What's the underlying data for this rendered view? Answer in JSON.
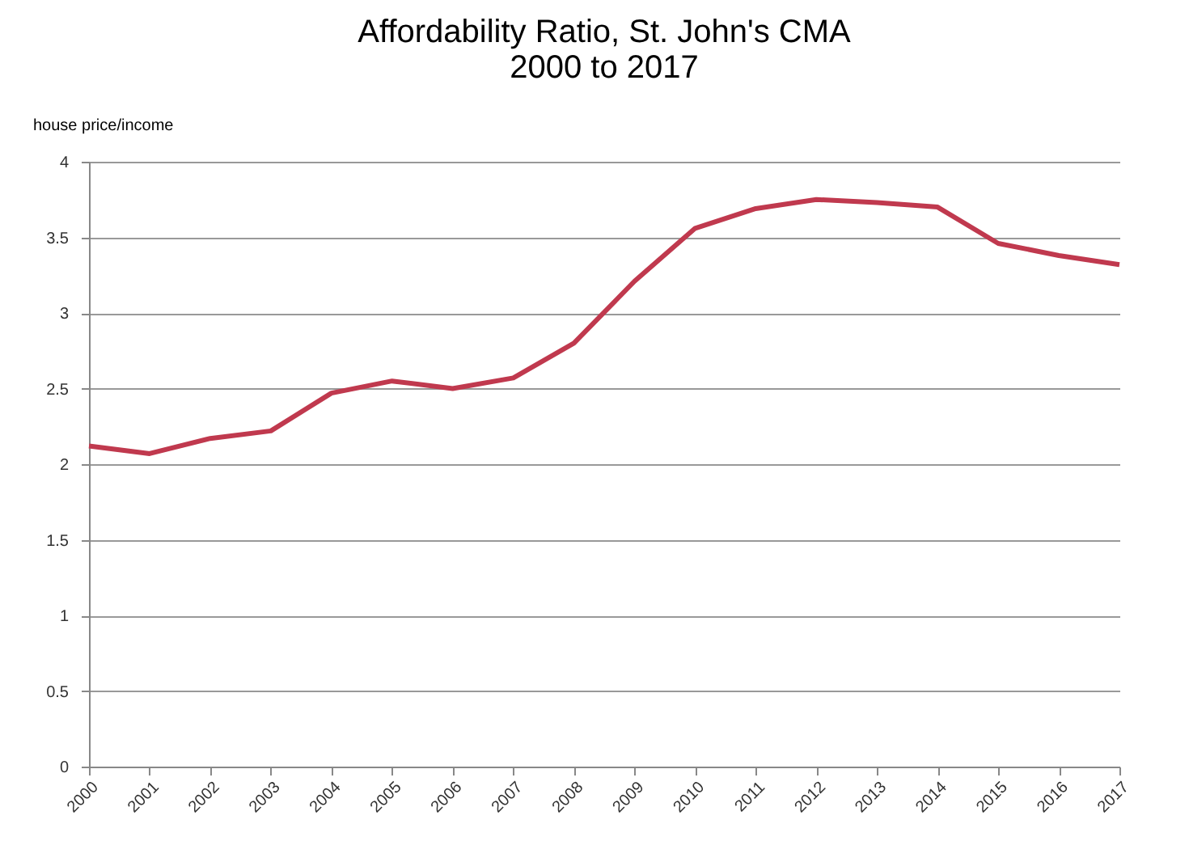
{
  "chart_data": {
    "type": "line",
    "title": [
      "Affordability Ratio, St. John's CMA",
      "2000 to 2017"
    ],
    "ylabel": "house price/income",
    "categories": [
      "2000",
      "2001",
      "2002",
      "2003",
      "2004",
      "2005",
      "2006",
      "2007",
      "2008",
      "2009",
      "2010",
      "2011",
      "2012",
      "2013",
      "2014",
      "2015",
      "2016",
      "2017"
    ],
    "series": [
      {
        "color": "#c0394e",
        "values": [
          2.12,
          2.07,
          2.17,
          2.22,
          2.47,
          2.55,
          2.5,
          2.57,
          2.8,
          3.21,
          3.56,
          3.69,
          3.75,
          3.73,
          3.7,
          3.46,
          3.38,
          3.32
        ]
      }
    ],
    "ylim": [
      0,
      4
    ],
    "yticks": [
      0,
      0.5,
      1,
      1.5,
      2,
      2.5,
      3,
      3.5,
      4
    ],
    "grid": "y",
    "marker": "none",
    "line_style": "solid"
  }
}
